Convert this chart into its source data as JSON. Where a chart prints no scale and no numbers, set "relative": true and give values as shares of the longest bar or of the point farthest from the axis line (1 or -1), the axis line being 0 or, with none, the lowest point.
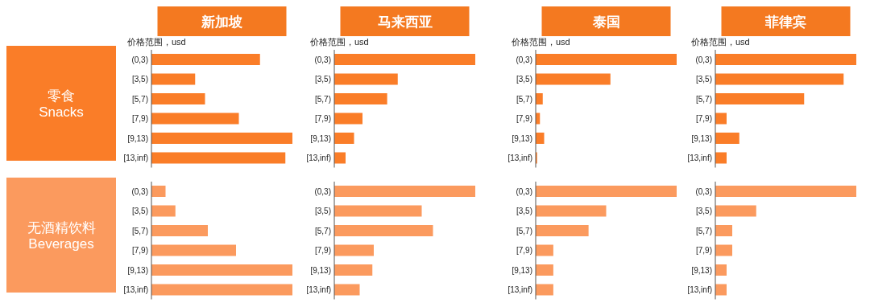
{
  "chart_data": [
    {
      "type": "bar",
      "orientation": "horizontal",
      "relative": true,
      "title": "新加坡",
      "ylabel": "零食\nSnacks",
      "annotations": [
        "价格范围，usd"
      ],
      "categories": [
        "(0,3)",
        "[3,5)",
        "[5,7)",
        "[7,9)",
        "[9,13)",
        "[13,inf)"
      ],
      "values": [
        0.77,
        0.31,
        0.38,
        0.62,
        1,
        0.95
      ],
      "color": "#fa7d28"
    },
    {
      "type": "bar",
      "orientation": "horizontal",
      "relative": true,
      "title": "马来西亚",
      "annotations": [
        "价格范围，usd"
      ],
      "categories": [
        "(0,3)",
        "[3,5)",
        "[5,7)",
        "[7,9)",
        "[9,13)",
        "[13,inf)"
      ],
      "values": [
        1,
        0.45,
        0.375,
        0.2,
        0.14,
        0.08
      ],
      "color": "#fa7d28"
    },
    {
      "type": "bar",
      "orientation": "horizontal",
      "relative": true,
      "title": "泰国",
      "annotations": [
        "价格范围，usd"
      ],
      "categories": [
        "(0,3)",
        "[3,5)",
        "[5,7)",
        "[7,9)",
        "[9,13)",
        "[13,inf)"
      ],
      "values": [
        1,
        0.53,
        0.05,
        0.03,
        0.06,
        0.01
      ],
      "color": "#fa7d28"
    },
    {
      "type": "bar",
      "orientation": "horizontal",
      "relative": true,
      "title": "菲律宾",
      "annotations": [
        "价格范围，usd"
      ],
      "categories": [
        "(0,3)",
        "[3,5)",
        "[5,7)",
        "[7,9)",
        "[9,13)",
        "[13,inf)"
      ],
      "values": [
        1,
        0.91,
        0.63,
        0.08,
        0.17,
        0.08
      ],
      "color": "#fa7d28"
    },
    {
      "type": "bar",
      "orientation": "horizontal",
      "relative": true,
      "ylabel": "无酒精饮料\nBeverages",
      "categories": [
        "(0,3)",
        "[3,5)",
        "[5,7)",
        "[7,9)",
        "[9,13)",
        "[13,inf)"
      ],
      "values": [
        0.1,
        0.17,
        0.4,
        0.6,
        1,
        1
      ],
      "color": "#fb9a5e"
    },
    {
      "type": "bar",
      "orientation": "horizontal",
      "relative": true,
      "categories": [
        "(0,3)",
        "[3,5)",
        "[5,7)",
        "[7,9)",
        "[9,13)",
        "[13,inf)"
      ],
      "values": [
        1,
        0.62,
        0.7,
        0.28,
        0.27,
        0.18
      ],
      "color": "#fb9a5e"
    },
    {
      "type": "bar",
      "orientation": "horizontal",
      "relative": true,
      "categories": [
        "(0,3)",
        "[3,5)",
        "[5,7)",
        "[7,9)",
        "[9,13)",
        "[13,inf)"
      ],
      "values": [
        1,
        0.5,
        0.375,
        0.125,
        0.125,
        0.125
      ],
      "color": "#fb9a5e"
    },
    {
      "type": "bar",
      "orientation": "horizontal",
      "relative": true,
      "categories": [
        "(0,3)",
        "[3,5)",
        "[5,7)",
        "[7,9)",
        "[9,13)",
        "[13,inf)"
      ],
      "values": [
        1,
        0.29,
        0.12,
        0.12,
        0.08,
        0.08
      ],
      "color": "#fb9a5e"
    }
  ]
}
